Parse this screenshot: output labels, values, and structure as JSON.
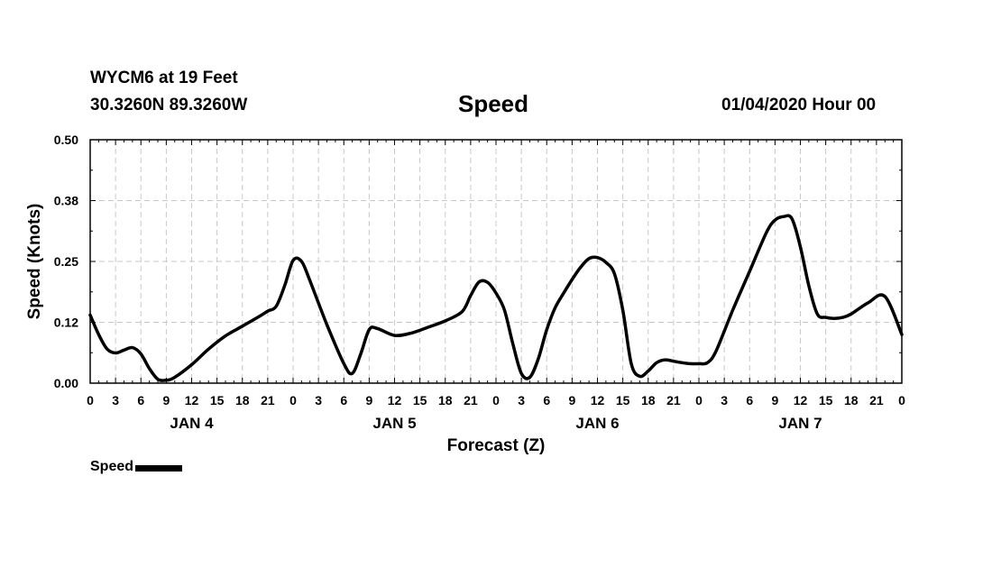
{
  "header": {
    "station": "WYCM6 at 19 Feet",
    "coords": "30.3260N 89.3260W",
    "title": "Speed",
    "run": "01/04/2020 Hour 00"
  },
  "chart_data": {
    "type": "line",
    "title": "Speed",
    "xlabel": "Forecast (Z)",
    "ylabel": "Speed (Knots)",
    "ylim": [
      0,
      0.5
    ],
    "yticks": [
      "0.00",
      "0.12",
      "0.25",
      "0.38",
      "0.50"
    ],
    "yticks_values": [
      0,
      0.125,
      0.25,
      0.375,
      0.5
    ],
    "xlim": [
      0,
      96
    ],
    "xticks": [
      "0",
      "3",
      "6",
      "9",
      "12",
      "15",
      "18",
      "21",
      "0",
      "3",
      "6",
      "9",
      "12",
      "15",
      "18",
      "21",
      "0",
      "3",
      "6",
      "9",
      "12",
      "15",
      "18",
      "21",
      "0",
      "3",
      "6",
      "9",
      "12",
      "15",
      "18",
      "21",
      "0"
    ],
    "day_labels": [
      {
        "label": "JAN 4",
        "hour": 12
      },
      {
        "label": "JAN 5",
        "hour": 36
      },
      {
        "label": "JAN 6",
        "hour": 60
      },
      {
        "label": "JAN 7",
        "hour": 84
      }
    ],
    "grid": true,
    "legend": "bottom-left",
    "series": [
      {
        "name": "Speed",
        "color": "#000000",
        "x": [
          0,
          1,
          2,
          3,
          4,
          5,
          6,
          7,
          8,
          9,
          10,
          12,
          14,
          16,
          18,
          20,
          21,
          22,
          23,
          24,
          25,
          26,
          28,
          30,
          31,
          32,
          33,
          34,
          36,
          38,
          40,
          42,
          44,
          45,
          46,
          47,
          48,
          49,
          50,
          51,
          52,
          53,
          54,
          55,
          56,
          57,
          58,
          59,
          60,
          61,
          62,
          63,
          64,
          65,
          66,
          67,
          68,
          69,
          70,
          71,
          72,
          73,
          74,
          76,
          78,
          80,
          81,
          82,
          83,
          84,
          85,
          86,
          87,
          88,
          89,
          90,
          92,
          94,
          96
        ],
        "y": [
          0.14,
          0.1,
          0.07,
          0.062,
          0.068,
          0.073,
          0.06,
          0.03,
          0.008,
          0.006,
          0.012,
          0.038,
          0.07,
          0.097,
          0.117,
          0.137,
          0.148,
          0.158,
          0.2,
          0.252,
          0.25,
          0.21,
          0.12,
          0.04,
          0.02,
          0.06,
          0.11,
          0.112,
          0.098,
          0.103,
          0.115,
          0.128,
          0.147,
          0.18,
          0.208,
          0.207,
          0.185,
          0.15,
          0.08,
          0.02,
          0.012,
          0.05,
          0.11,
          0.155,
          0.185,
          0.213,
          0.238,
          0.256,
          0.258,
          0.248,
          0.225,
          0.15,
          0.04,
          0.014,
          0.025,
          0.042,
          0.048,
          0.045,
          0.042,
          0.04,
          0.04,
          0.042,
          0.065,
          0.15,
          0.23,
          0.31,
          0.335,
          0.342,
          0.338,
          0.28,
          0.2,
          0.142,
          0.135,
          0.133,
          0.135,
          0.142,
          0.165,
          0.178,
          0.1
        ]
      }
    ]
  }
}
